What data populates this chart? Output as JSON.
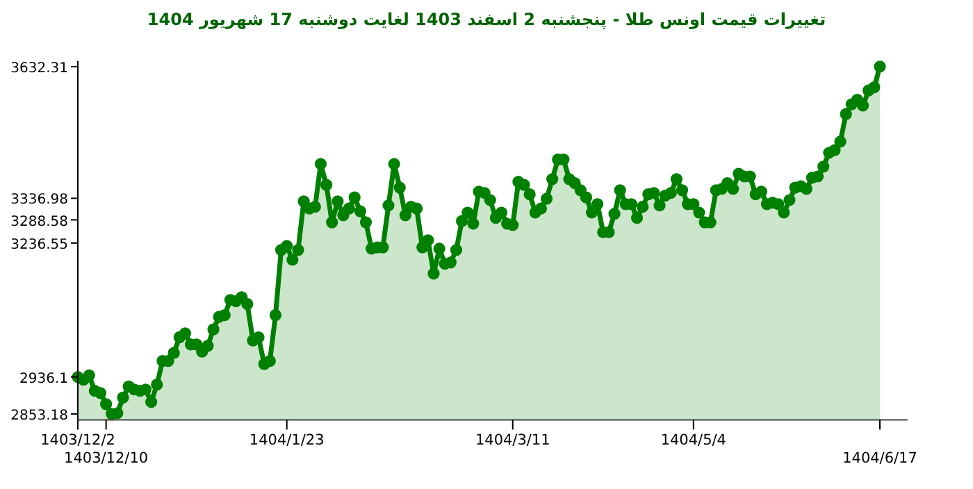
{
  "chart_data": {
    "type": "area",
    "title": "تغییرات قیمت اونس طلا - پنجشنبه 2 اسفند 1403 لغایت دوشنبه 17 شهریور 1404",
    "marker": "circle",
    "categories": [
      "1403/12/2",
      null,
      null,
      null,
      null,
      "1403/12/10",
      null,
      null,
      null,
      null,
      null,
      null,
      null,
      null,
      null,
      null,
      null,
      null,
      null,
      null,
      null,
      null,
      null,
      null,
      null,
      null,
      null,
      null,
      null,
      null,
      null,
      null,
      null,
      null,
      null,
      null,
      null,
      "1404/1/23",
      null,
      null,
      null,
      null,
      null,
      null,
      null,
      null,
      null,
      null,
      null,
      null,
      null,
      null,
      null,
      null,
      null,
      null,
      null,
      null,
      null,
      null,
      null,
      null,
      null,
      null,
      null,
      null,
      null,
      null,
      null,
      null,
      null,
      null,
      null,
      null,
      null,
      null,
      null,
      "1404/3/11",
      null,
      null,
      null,
      null,
      null,
      null,
      null,
      null,
      null,
      null,
      null,
      null,
      null,
      null,
      null,
      null,
      null,
      null,
      null,
      null,
      null,
      null,
      null,
      null,
      null,
      null,
      null,
      null,
      null,
      null,
      null,
      "1404/5/4",
      null,
      null,
      null,
      null,
      null,
      null,
      null,
      null,
      null,
      null,
      null,
      null,
      null,
      null,
      null,
      null,
      null,
      null,
      null,
      null,
      null,
      null,
      null,
      null,
      null,
      null,
      null,
      null,
      null,
      null,
      null,
      null,
      "1404/6/17"
    ],
    "ylim": [
      2840,
      3645
    ],
    "yticks": [
      2853.18,
      2936.1,
      3236.55,
      3288.58,
      3336.98,
      3632.31
    ],
    "series": [
      {
        "color": "#008000",
        "values": [
          2936.1,
          2930,
          2940,
          2905,
          2900,
          2875,
          2853.18,
          2855,
          2890,
          2915,
          2908,
          2905,
          2908,
          2880,
          2919,
          2972,
          2972,
          2990,
          3025,
          3034,
          3009,
          3009,
          2993,
          3006,
          3043,
          3071,
          3075,
          3109,
          3106,
          3115,
          3100,
          3018,
          3025,
          2965,
          2972,
          3075,
          3221,
          3230,
          3199,
          3221,
          3330,
          3314,
          3318,
          3414,
          3367,
          3283,
          3330,
          3299,
          3314,
          3339,
          3308,
          3283,
          3224,
          3227,
          3227,
          3321,
          3414,
          3361,
          3299,
          3318,
          3314,
          3227,
          3243,
          3168,
          3224,
          3190,
          3193,
          3221,
          3286,
          3305,
          3280,
          3352,
          3349,
          3333,
          3293,
          3305,
          3280,
          3277,
          3374,
          3367,
          3346,
          3305,
          3314,
          3336,
          3380,
          3424,
          3424,
          3380,
          3371,
          3355,
          3339,
          3305,
          3324,
          3261,
          3261,
          3302,
          3355,
          3324,
          3324,
          3293,
          3318,
          3346,
          3349,
          3321,
          3343,
          3349,
          3380,
          3355,
          3324,
          3324,
          3305,
          3283,
          3283,
          3355,
          3358,
          3371,
          3358,
          3392,
          3386,
          3386,
          3346,
          3352,
          3324,
          3327,
          3324,
          3305,
          3333,
          3361,
          3364,
          3358,
          3383,
          3386,
          3408,
          3439,
          3445,
          3464,
          3526,
          3548,
          3558,
          3545,
          3579,
          3586,
          3632.31
        ]
      }
    ]
  }
}
